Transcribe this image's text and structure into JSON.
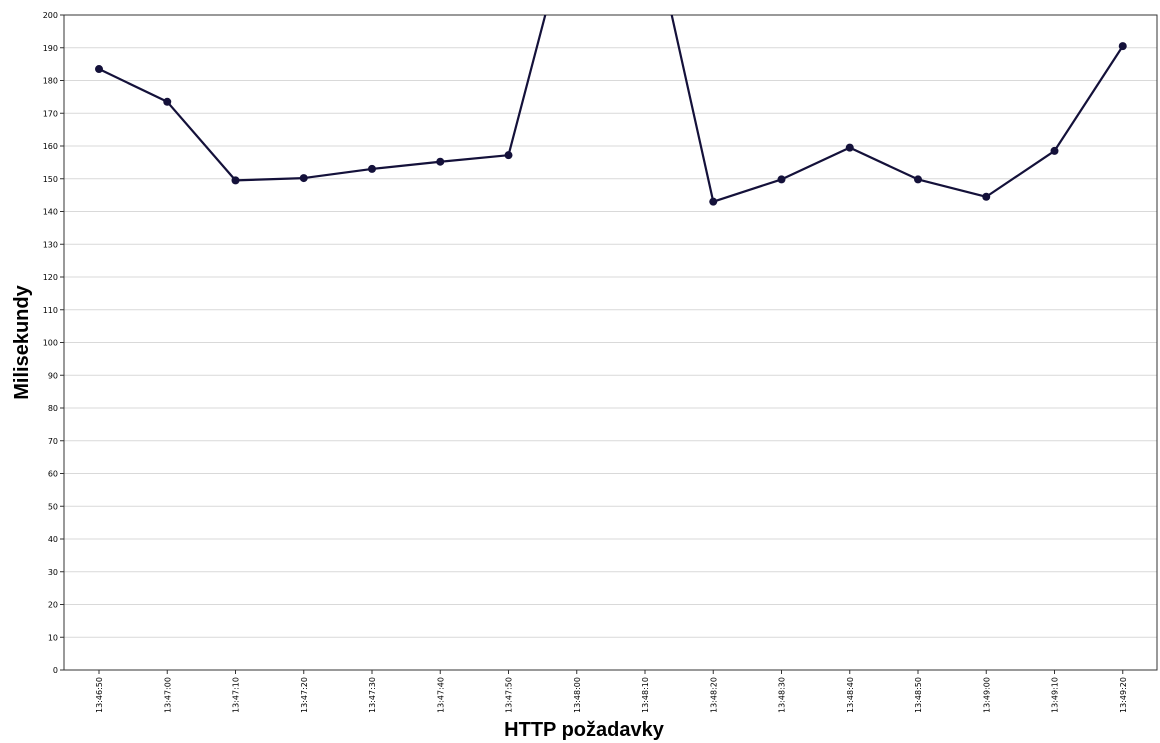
{
  "chart_data": {
    "type": "line",
    "title": "",
    "xlabel": "HTTP požadavky",
    "ylabel": "Milisekundy",
    "ylim": [
      0,
      200
    ],
    "ytick_step": 10,
    "grid": true,
    "categories": [
      "13:46:50",
      "13:47:00",
      "13:47:10",
      "13:47:20",
      "13:47:30",
      "13:47:40",
      "13:47:50",
      "13:48:00",
      "13:48:10",
      "13:48:20",
      "13:48:30",
      "13:48:40",
      "13:48:50",
      "13:49:00",
      "13:49:10",
      "13:49:20"
    ],
    "series": [
      {
        "values": [
          183.5,
          173.5,
          149.5,
          150.2,
          153.0,
          155.2,
          157.2,
          null,
          null,
          143.0,
          149.8,
          159.5,
          149.8,
          144.5,
          158.5,
          190.5
        ],
        "off_chart_note": "Values at 13:48:00 and 13:48:10 exceed the 200 ms axis maximum (line leaves the top of the plot)",
        "color": "#14113a"
      }
    ]
  }
}
